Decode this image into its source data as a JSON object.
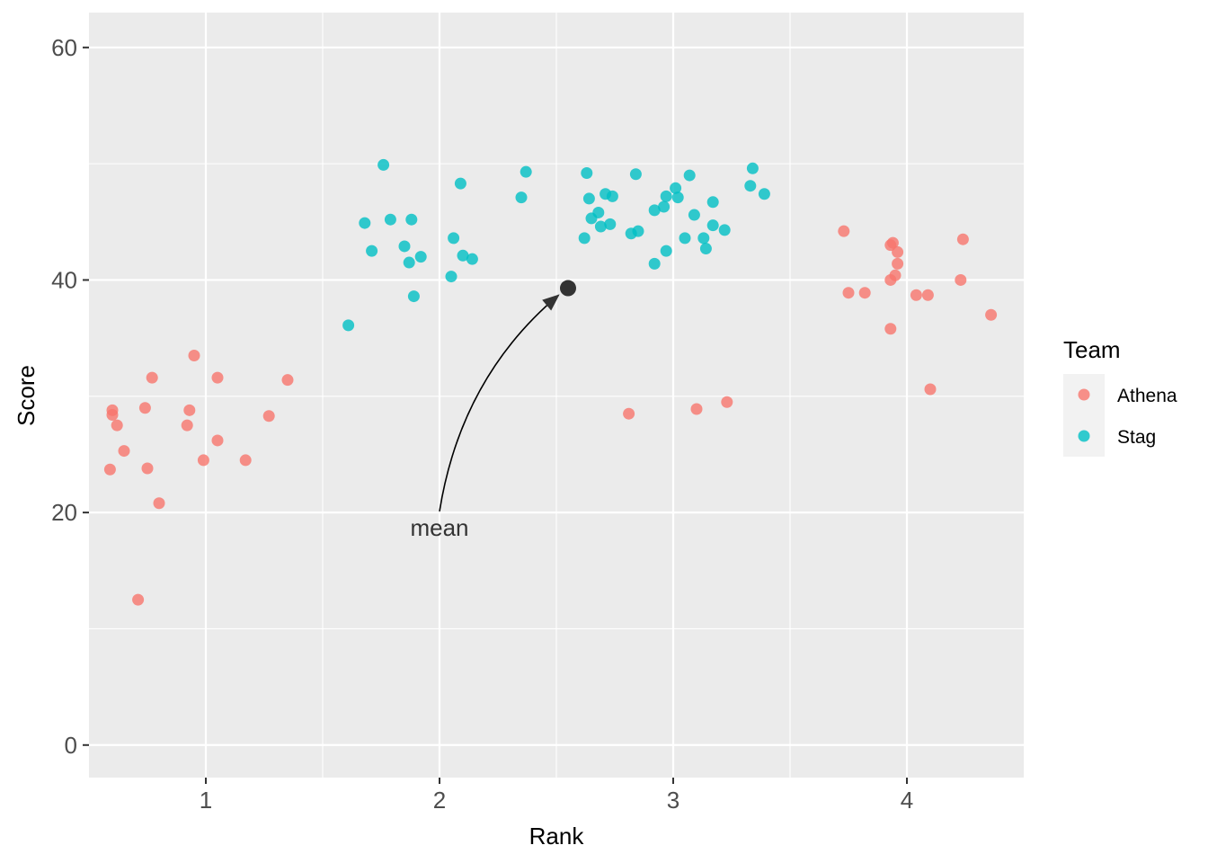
{
  "chart_data": {
    "type": "scatter",
    "title": "",
    "xlabel": "Rank",
    "ylabel": "Score",
    "xlim": [
      0.5,
      4.5
    ],
    "ylim": [
      -2.8,
      63
    ],
    "x_ticks": [
      1,
      2,
      3,
      4
    ],
    "x_minor_ticks": [
      1.5,
      2.5,
      3.5
    ],
    "y_ticks": [
      0,
      20,
      40,
      60
    ],
    "y_minor_ticks": [
      10,
      30,
      50
    ],
    "grid": true,
    "legend": {
      "title": "Team",
      "position": "right"
    },
    "series": [
      {
        "name": "Athena",
        "color": "#F8766D",
        "points": [
          [
            0.59,
            23.7
          ],
          [
            0.6,
            28.4
          ],
          [
            0.6,
            28.8
          ],
          [
            0.62,
            27.5
          ],
          [
            0.65,
            25.3
          ],
          [
            0.71,
            12.5
          ],
          [
            0.74,
            29.0
          ],
          [
            0.75,
            23.8
          ],
          [
            0.77,
            31.6
          ],
          [
            0.8,
            20.8
          ],
          [
            0.92,
            27.5
          ],
          [
            0.93,
            28.8
          ],
          [
            0.95,
            33.5
          ],
          [
            0.99,
            24.5
          ],
          [
            1.05,
            26.2
          ],
          [
            1.05,
            31.6
          ],
          [
            1.17,
            24.5
          ],
          [
            1.27,
            28.3
          ],
          [
            1.35,
            31.4
          ],
          [
            2.81,
            28.5
          ],
          [
            3.1,
            28.9
          ],
          [
            3.23,
            29.5
          ],
          [
            3.73,
            44.2
          ],
          [
            3.75,
            38.9
          ],
          [
            3.82,
            38.9
          ],
          [
            3.93,
            43.0
          ],
          [
            3.93,
            35.8
          ],
          [
            3.93,
            40.0
          ],
          [
            3.94,
            43.2
          ],
          [
            3.95,
            40.4
          ],
          [
            3.96,
            41.4
          ],
          [
            3.96,
            42.4
          ],
          [
            4.04,
            38.7
          ],
          [
            4.09,
            38.7
          ],
          [
            4.1,
            30.6
          ],
          [
            4.23,
            40.0
          ],
          [
            4.24,
            43.5
          ],
          [
            4.36,
            37.0
          ]
        ]
      },
      {
        "name": "Stag",
        "color": "#00BFC4",
        "points": [
          [
            1.61,
            36.1
          ],
          [
            1.68,
            44.9
          ],
          [
            1.71,
            42.5
          ],
          [
            1.76,
            49.9
          ],
          [
            1.79,
            45.2
          ],
          [
            1.85,
            42.9
          ],
          [
            1.87,
            41.5
          ],
          [
            1.88,
            45.2
          ],
          [
            1.89,
            38.6
          ],
          [
            1.92,
            42.0
          ],
          [
            2.05,
            40.3
          ],
          [
            2.06,
            43.6
          ],
          [
            2.09,
            48.3
          ],
          [
            2.1,
            42.1
          ],
          [
            2.14,
            41.8
          ],
          [
            2.35,
            47.1
          ],
          [
            2.37,
            49.3
          ],
          [
            2.62,
            43.6
          ],
          [
            2.63,
            49.2
          ],
          [
            2.64,
            47.0
          ],
          [
            2.65,
            45.3
          ],
          [
            2.68,
            45.8
          ],
          [
            2.69,
            44.6
          ],
          [
            2.71,
            47.4
          ],
          [
            2.73,
            44.8
          ],
          [
            2.74,
            47.2
          ],
          [
            2.82,
            44.0
          ],
          [
            2.84,
            49.1
          ],
          [
            2.85,
            44.2
          ],
          [
            2.92,
            46.0
          ],
          [
            2.92,
            41.4
          ],
          [
            2.96,
            46.3
          ],
          [
            2.97,
            47.2
          ],
          [
            2.97,
            42.5
          ],
          [
            3.01,
            47.9
          ],
          [
            3.02,
            47.1
          ],
          [
            3.05,
            43.6
          ],
          [
            3.07,
            49.0
          ],
          [
            3.09,
            45.6
          ],
          [
            3.13,
            43.6
          ],
          [
            3.14,
            42.7
          ],
          [
            3.17,
            46.7
          ],
          [
            3.17,
            44.7
          ],
          [
            3.22,
            44.3
          ],
          [
            3.33,
            48.1
          ],
          [
            3.34,
            49.6
          ],
          [
            3.39,
            47.4
          ]
        ]
      }
    ],
    "annotations": [
      {
        "text": "mean",
        "text_x": 2.0,
        "text_y": 18.7,
        "point": [
          2.55,
          39.3
        ],
        "point_color": "#333333",
        "arrow_from": [
          2.0,
          20.1
        ],
        "arrow_to": [
          2.51,
          38.7
        ]
      }
    ]
  }
}
